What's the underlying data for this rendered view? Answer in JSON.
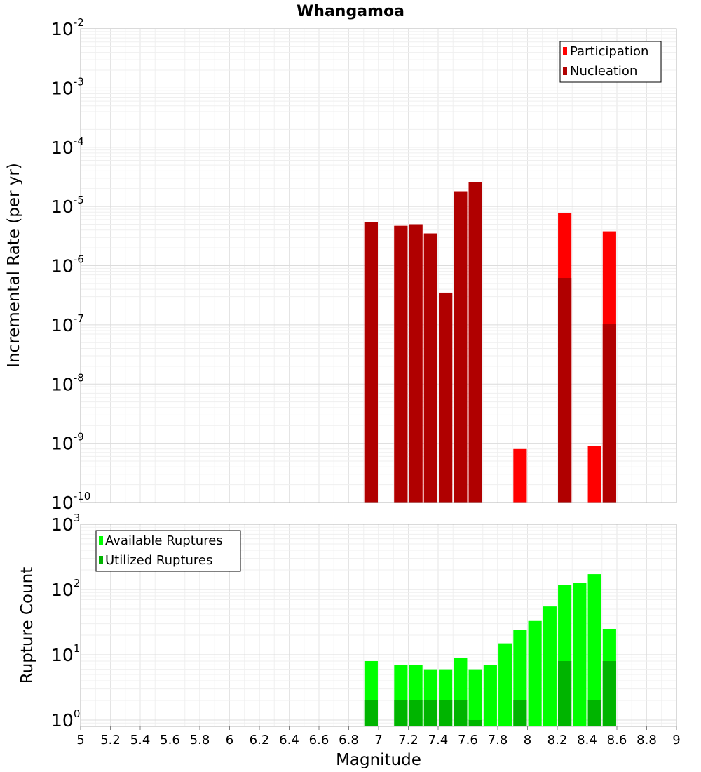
{
  "chart_data": [
    {
      "type": "bar",
      "title": "Whangamoa",
      "ylabel": "Incremental Rate (per yr)",
      "xlabel": "Magnitude",
      "y_scale": "log",
      "ylim": [
        1e-10,
        0.01
      ],
      "xlim": [
        5,
        9
      ],
      "grid": true,
      "legend_position": "top-right",
      "y_ticks": [
        {
          "base": "10",
          "exp": "-10",
          "value": 1e-10
        },
        {
          "base": "10",
          "exp": "-9",
          "value": 1e-09
        },
        {
          "base": "10",
          "exp": "-8",
          "value": 1e-08
        },
        {
          "base": "10",
          "exp": "-7",
          "value": 1e-07
        },
        {
          "base": "10",
          "exp": "-6",
          "value": 1e-06
        },
        {
          "base": "10",
          "exp": "-5",
          "value": 1e-05
        },
        {
          "base": "10",
          "exp": "-4",
          "value": 0.0001
        },
        {
          "base": "10",
          "exp": "-3",
          "value": 0.001
        },
        {
          "base": "10",
          "exp": "-2",
          "value": 0.01
        }
      ],
      "series": [
        {
          "name": "Participation",
          "color": "#ff0000",
          "points": [
            {
              "x": 6.95,
              "y": 5.5e-06
            },
            {
              "x": 7.15,
              "y": 4.7e-06
            },
            {
              "x": 7.25,
              "y": 5e-06
            },
            {
              "x": 7.35,
              "y": 3.5e-06
            },
            {
              "x": 7.45,
              "y": 3.5e-07
            },
            {
              "x": 7.55,
              "y": 1.8e-05
            },
            {
              "x": 7.65,
              "y": 2.6e-05
            },
            {
              "x": 7.95,
              "y": 8e-10
            },
            {
              "x": 8.25,
              "y": 7.8e-06
            },
            {
              "x": 8.45,
              "y": 9e-10
            },
            {
              "x": 8.55,
              "y": 3.8e-06
            }
          ]
        },
        {
          "name": "Nucleation",
          "color": "#b00000",
          "points": [
            {
              "x": 6.95,
              "y": 5.5e-06
            },
            {
              "x": 7.15,
              "y": 4.7e-06
            },
            {
              "x": 7.25,
              "y": 5e-06
            },
            {
              "x": 7.35,
              "y": 3.5e-06
            },
            {
              "x": 7.45,
              "y": 3.5e-07
            },
            {
              "x": 7.55,
              "y": 1.8e-05
            },
            {
              "x": 7.65,
              "y": 2.6e-05
            },
            {
              "x": 8.25,
              "y": 6.2e-07
            },
            {
              "x": 8.55,
              "y": 1.05e-07
            }
          ]
        }
      ]
    },
    {
      "type": "bar",
      "ylabel": "Rupture Count",
      "xlabel": "Magnitude",
      "y_scale": "log",
      "ylim": [
        0.8,
        1000
      ],
      "xlim": [
        5,
        9
      ],
      "grid": true,
      "legend_position": "top-left",
      "x_ticks": [
        "5",
        "5.2",
        "5.4",
        "5.6",
        "5.8",
        "6",
        "6.2",
        "6.4",
        "6.6",
        "6.8",
        "7",
        "7.2",
        "7.4",
        "7.6",
        "7.8",
        "8",
        "8.2",
        "8.4",
        "8.6",
        "8.8",
        "9"
      ],
      "y_ticks": [
        {
          "base": "10",
          "exp": "0",
          "value": 1
        },
        {
          "base": "10",
          "exp": "1",
          "value": 10
        },
        {
          "base": "10",
          "exp": "2",
          "value": 100
        },
        {
          "base": "10",
          "exp": "3",
          "value": 1000
        }
      ],
      "series": [
        {
          "name": "Available Ruptures",
          "color": "#00ff00",
          "points": [
            {
              "x": 6.95,
              "y": 8
            },
            {
              "x": 7.15,
              "y": 7
            },
            {
              "x": 7.25,
              "y": 7
            },
            {
              "x": 7.35,
              "y": 6
            },
            {
              "x": 7.45,
              "y": 6
            },
            {
              "x": 7.55,
              "y": 9
            },
            {
              "x": 7.65,
              "y": 6
            },
            {
              "x": 7.75,
              "y": 7
            },
            {
              "x": 7.85,
              "y": 15
            },
            {
              "x": 7.95,
              "y": 24
            },
            {
              "x": 8.05,
              "y": 33
            },
            {
              "x": 8.15,
              "y": 55
            },
            {
              "x": 8.25,
              "y": 118
            },
            {
              "x": 8.35,
              "y": 128
            },
            {
              "x": 8.45,
              "y": 172
            },
            {
              "x": 8.55,
              "y": 25
            }
          ]
        },
        {
          "name": "Utilized Ruptures",
          "color": "#00b400",
          "points": [
            {
              "x": 6.95,
              "y": 2
            },
            {
              "x": 7.15,
              "y": 2
            },
            {
              "x": 7.25,
              "y": 2
            },
            {
              "x": 7.35,
              "y": 2
            },
            {
              "x": 7.45,
              "y": 2
            },
            {
              "x": 7.55,
              "y": 2
            },
            {
              "x": 7.65,
              "y": 1
            },
            {
              "x": 7.95,
              "y": 2
            },
            {
              "x": 8.25,
              "y": 8
            },
            {
              "x": 8.45,
              "y": 2
            },
            {
              "x": 8.55,
              "y": 8
            }
          ]
        }
      ]
    }
  ]
}
